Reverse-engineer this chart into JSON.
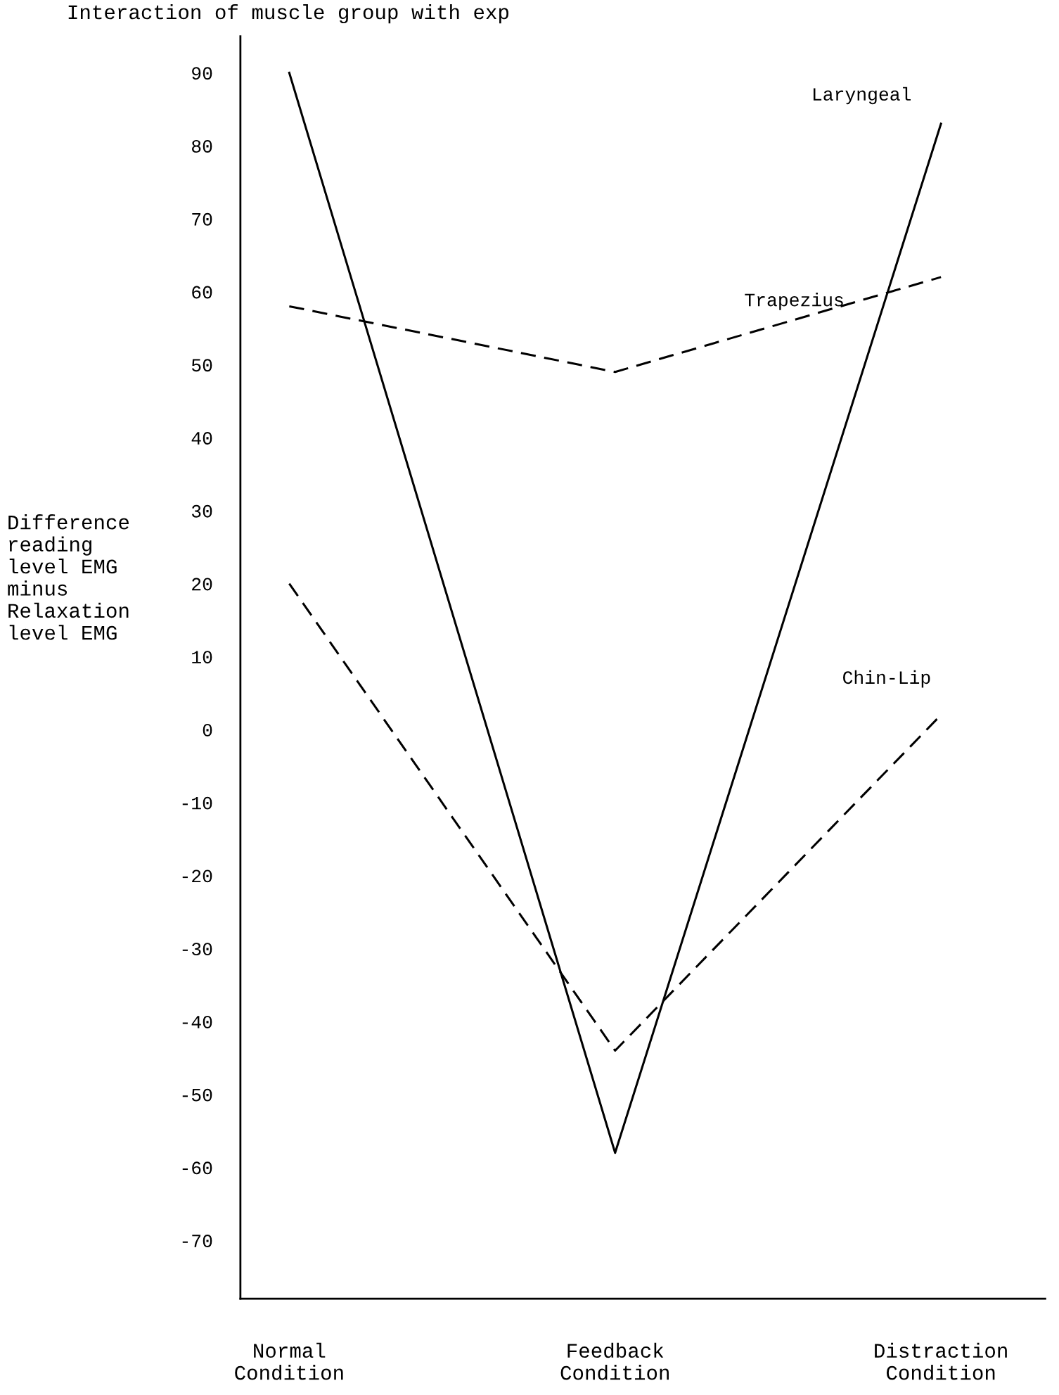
{
  "chart_data": {
    "type": "line",
    "title": "Interaction of muscle group with exp",
    "ylabel": "Difference\nreading\nlevel EMG\nminus\nRelaxation\nlevel EMG",
    "categories": [
      "Normal\nCondition",
      "Feedback\nCondition",
      "Distraction\nCondition"
    ],
    "series": [
      {
        "name": "Laryngeal",
        "color": "#000000",
        "line_style": "solid",
        "values": [
          90,
          -58,
          83
        ]
      },
      {
        "name": "Trapezius",
        "color": "#000000",
        "line_style": "dashed",
        "values": [
          58,
          49,
          62
        ]
      },
      {
        "name": "Chin-Lip",
        "color": "#000000",
        "line_style": "dashed",
        "values": [
          20,
          -44,
          2
        ]
      }
    ],
    "ylim": [
      -78,
      95
    ],
    "yticks": [
      -70,
      -60,
      -50,
      -40,
      -30,
      -20,
      -10,
      0,
      10,
      20,
      30,
      40,
      50,
      60,
      70,
      80,
      90
    ],
    "grid": false,
    "legend": false,
    "marker": "none"
  }
}
